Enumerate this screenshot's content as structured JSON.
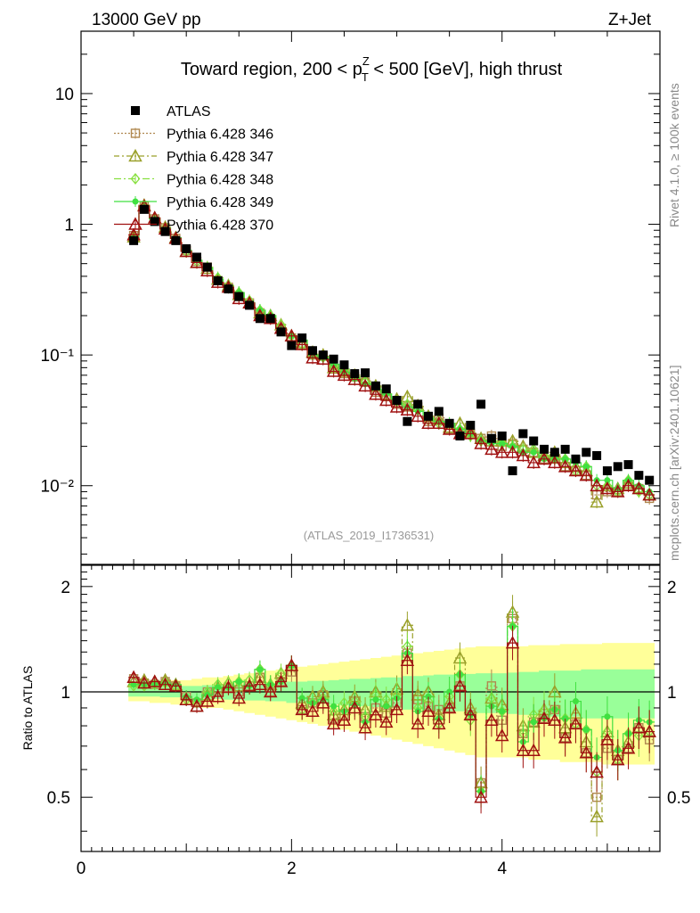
{
  "header": {
    "energy_label": "13000 GeV pp",
    "process_label": "Z+Jet",
    "side_label_top": "Rivet 4.1.0, ≥ 100k events",
    "side_label_bottom": "mcplots.cern.ch [arXiv:2401.10621]",
    "analysis_id": "(ATLAS_2019_I1736531)"
  },
  "chart_data": [
    {
      "type": "scatter",
      "title": "Toward region, 200 < p_T^Z < 500 [GeV], high thrust",
      "title_parts": {
        "before": "Toward region, 200 < p",
        "sup": "Z",
        "sub": "T",
        "after": " < 500 [GeV], high thrust"
      },
      "xlabel": "",
      "ylabel": "",
      "xlim": [
        0,
        5.5
      ],
      "ylim": [
        0.0025,
        30
      ],
      "yscale": "log",
      "y_tick_labels": [
        "10",
        "1",
        "10⁻¹",
        "10⁻²"
      ],
      "y_tick_values": [
        10,
        1,
        0.1,
        0.01
      ],
      "legend": [
        "ATLAS",
        "Pythia 6.428 346",
        "Pythia 6.428 347",
        "Pythia 6.428 348",
        "Pythia 6.428 349",
        "Pythia 6.428 370"
      ],
      "legend_position": "top-left",
      "x": [
        0.5,
        0.6,
        0.7,
        0.8,
        0.9,
        1.0,
        1.1,
        1.2,
        1.3,
        1.4,
        1.5,
        1.6,
        1.7,
        1.8,
        1.9,
        2.0,
        2.1,
        2.2,
        2.3,
        2.4,
        2.5,
        2.6,
        2.7,
        2.8,
        2.9,
        3.0,
        3.1,
        3.2,
        3.3,
        3.4,
        3.5,
        3.6,
        3.7,
        3.8,
        3.9,
        4.0,
        4.1,
        4.2,
        4.3,
        4.4,
        4.5,
        4.6,
        4.7,
        4.8,
        4.9,
        5.0,
        5.1,
        5.2,
        5.3,
        5.4
      ],
      "series": [
        {
          "name": "ATLAS",
          "color": "#000000",
          "marker": "square",
          "values": [
            0.75,
            1.3,
            1.05,
            0.88,
            0.75,
            0.65,
            0.56,
            0.47,
            0.37,
            0.32,
            0.28,
            0.24,
            0.19,
            0.19,
            0.15,
            0.118,
            0.135,
            0.108,
            0.1,
            0.093,
            0.084,
            0.072,
            0.073,
            0.058,
            0.055,
            0.045,
            0.031,
            0.042,
            0.034,
            0.037,
            0.03,
            0.024,
            0.029,
            0.042,
            0.023,
            0.024,
            0.013,
            0.025,
            0.022,
            0.019,
            0.018,
            0.019,
            0.016,
            0.018,
            0.017,
            0.013,
            0.014,
            0.0145,
            0.012,
            0.011
          ]
        },
        {
          "name": "Pythia 6.428 346",
          "color": "#b08850",
          "marker": "open-square",
          "values": [
            0.82,
            1.38,
            1.1,
            0.94,
            0.78,
            0.63,
            0.52,
            0.47,
            0.37,
            0.33,
            0.28,
            0.25,
            0.21,
            0.19,
            0.16,
            0.135,
            0.12,
            0.1,
            0.098,
            0.078,
            0.072,
            0.068,
            0.062,
            0.052,
            0.048,
            0.042,
            0.04,
            0.04,
            0.031,
            0.033,
            0.027,
            0.025,
            0.025,
            0.023,
            0.024,
            0.02,
            0.021,
            0.019,
            0.018,
            0.016,
            0.016,
            0.014,
            0.013,
            0.012,
            0.0085,
            0.009,
            0.009,
            0.01,
            0.0095,
            0.008
          ]
        },
        {
          "name": "Pythia 6.428 347",
          "color": "#9aa02a",
          "marker": "open-triangle",
          "values": [
            0.8,
            1.4,
            1.12,
            0.95,
            0.79,
            0.62,
            0.51,
            0.46,
            0.38,
            0.34,
            0.29,
            0.25,
            0.21,
            0.2,
            0.17,
            0.14,
            0.125,
            0.105,
            0.1,
            0.08,
            0.075,
            0.07,
            0.065,
            0.058,
            0.05,
            0.046,
            0.048,
            0.041,
            0.034,
            0.032,
            0.028,
            0.03,
            0.026,
            0.023,
            0.022,
            0.022,
            0.022,
            0.02,
            0.018,
            0.017,
            0.018,
            0.015,
            0.014,
            0.013,
            0.0075,
            0.01,
            0.0095,
            0.0105,
            0.0095,
            0.0085
          ]
        },
        {
          "name": "Pythia 6.428 348",
          "color": "#88e040",
          "marker": "open-diamond",
          "values": [
            0.78,
            1.35,
            1.1,
            0.93,
            0.78,
            0.62,
            0.52,
            0.47,
            0.39,
            0.34,
            0.3,
            0.26,
            0.22,
            0.2,
            0.17,
            0.14,
            0.12,
            0.1,
            0.096,
            0.082,
            0.078,
            0.068,
            0.062,
            0.057,
            0.052,
            0.044,
            0.042,
            0.038,
            0.032,
            0.03,
            0.029,
            0.027,
            0.024,
            0.022,
            0.022,
            0.021,
            0.02,
            0.019,
            0.019,
            0.017,
            0.016,
            0.016,
            0.013,
            0.014,
            0.01,
            0.01,
            0.009,
            0.011,
            0.009,
            0.0085
          ]
        },
        {
          "name": "Pythia 6.428 349",
          "color": "#40e040",
          "marker": "circle",
          "values": [
            0.79,
            1.36,
            1.1,
            0.93,
            0.79,
            0.63,
            0.53,
            0.46,
            0.38,
            0.33,
            0.3,
            0.25,
            0.22,
            0.2,
            0.16,
            0.14,
            0.13,
            0.1,
            0.095,
            0.085,
            0.074,
            0.066,
            0.06,
            0.055,
            0.05,
            0.043,
            0.04,
            0.037,
            0.033,
            0.031,
            0.03,
            0.027,
            0.025,
            0.022,
            0.021,
            0.021,
            0.02,
            0.018,
            0.018,
            0.016,
            0.016,
            0.016,
            0.015,
            0.014,
            0.011,
            0.011,
            0.0095,
            0.011,
            0.01,
            0.009
          ]
        },
        {
          "name": "Pythia 6.428 370",
          "color": "#a01010",
          "marker": "open-triangle",
          "values": [
            0.83,
            1.38,
            1.12,
            0.92,
            0.78,
            0.62,
            0.51,
            0.44,
            0.36,
            0.33,
            0.27,
            0.25,
            0.2,
            0.19,
            0.16,
            0.14,
            0.12,
            0.095,
            0.093,
            0.075,
            0.07,
            0.065,
            0.058,
            0.05,
            0.045,
            0.04,
            0.038,
            0.034,
            0.03,
            0.03,
            0.027,
            0.025,
            0.025,
            0.021,
            0.019,
            0.018,
            0.018,
            0.017,
            0.015,
            0.016,
            0.015,
            0.014,
            0.013,
            0.012,
            0.01,
            0.0095,
            0.009,
            0.01,
            0.0095,
            0.0085
          ]
        }
      ]
    },
    {
      "type": "line",
      "title": "",
      "xlabel": "",
      "ylabel": "Ratio to ATLAS",
      "xlim": [
        0,
        5.5
      ],
      "ylim": [
        0.35,
        2.3
      ],
      "yscale": "log",
      "x_tick_labels": [
        "0",
        "2",
        "4"
      ],
      "x_tick_values": [
        0,
        2,
        4
      ],
      "y_tick_labels": [
        "2",
        "1",
        "0.5"
      ],
      "y_tick_values": [
        2,
        1,
        0.5
      ],
      "reference_line": 1,
      "band_outer_color": "#ffff99",
      "band_inner_color": "#99ff99",
      "band_inner": [
        0.03,
        0.03,
        0.03,
        0.035,
        0.035,
        0.04,
        0.04,
        0.045,
        0.045,
        0.05,
        0.05,
        0.055,
        0.055,
        0.06,
        0.06,
        0.07,
        0.07,
        0.075,
        0.075,
        0.08,
        0.085,
        0.09,
        0.09,
        0.095,
        0.1,
        0.1,
        0.11,
        0.11,
        0.115,
        0.12,
        0.12,
        0.12,
        0.125,
        0.13,
        0.13,
        0.13,
        0.135,
        0.14,
        0.14,
        0.15,
        0.15,
        0.15,
        0.15,
        0.16,
        0.16,
        0.16,
        0.16,
        0.16,
        0.16,
        0.16
      ],
      "band_outer": [
        0.06,
        0.06,
        0.07,
        0.07,
        0.08,
        0.08,
        0.09,
        0.1,
        0.1,
        0.11,
        0.12,
        0.13,
        0.14,
        0.15,
        0.16,
        0.17,
        0.18,
        0.19,
        0.2,
        0.21,
        0.22,
        0.23,
        0.24,
        0.25,
        0.26,
        0.27,
        0.28,
        0.29,
        0.3,
        0.31,
        0.32,
        0.33,
        0.34,
        0.35,
        0.35,
        0.35,
        0.35,
        0.35,
        0.36,
        0.36,
        0.36,
        0.37,
        0.37,
        0.37,
        0.37,
        0.38,
        0.38,
        0.38,
        0.38,
        0.38
      ],
      "x": [
        0.5,
        0.6,
        0.7,
        0.8,
        0.9,
        1.0,
        1.1,
        1.2,
        1.3,
        1.4,
        1.5,
        1.6,
        1.7,
        1.8,
        1.9,
        2.0,
        2.1,
        2.2,
        2.3,
        2.4,
        2.5,
        2.6,
        2.7,
        2.8,
        2.9,
        3.0,
        3.1,
        3.2,
        3.3,
        3.4,
        3.5,
        3.6,
        3.7,
        3.8,
        3.9,
        4.0,
        4.1,
        4.2,
        4.3,
        4.4,
        4.5,
        4.6,
        4.7,
        4.8,
        4.9,
        5.0,
        5.1,
        5.2,
        5.3,
        5.4
      ],
      "series": [
        {
          "name": "Pythia 6.428 346",
          "color": "#b08850",
          "marker": "open-square",
          "values": [
            1.09,
            1.06,
            1.05,
            1.07,
            1.04,
            0.97,
            0.93,
            1.0,
            1.0,
            1.03,
            1.0,
            1.04,
            1.1,
            1.0,
            1.07,
            1.14,
            0.89,
            0.93,
            0.98,
            0.84,
            0.86,
            0.94,
            0.85,
            0.9,
            0.87,
            0.93,
            1.29,
            0.95,
            0.91,
            0.89,
            0.9,
            1.04,
            0.86,
            0.55,
            1.04,
            0.83,
            1.62,
            0.76,
            0.82,
            0.84,
            0.89,
            0.74,
            0.81,
            0.67,
            0.5,
            0.69,
            0.64,
            0.69,
            0.79,
            0.73
          ]
        },
        {
          "name": "Pythia 6.428 347",
          "color": "#9aa02a",
          "marker": "open-triangle",
          "values": [
            1.07,
            1.08,
            1.07,
            1.08,
            1.05,
            0.95,
            0.91,
            0.98,
            1.03,
            1.06,
            1.04,
            1.04,
            1.1,
            1.05,
            1.13,
            1.19,
            0.93,
            0.97,
            1.0,
            0.86,
            0.89,
            0.97,
            0.89,
            1.0,
            0.91,
            1.02,
            1.55,
            0.98,
            1.0,
            0.86,
            0.93,
            1.25,
            0.9,
            0.55,
            0.96,
            0.92,
            1.69,
            0.8,
            0.82,
            0.89,
            1.0,
            0.79,
            0.87,
            0.72,
            0.44,
            0.77,
            0.68,
            0.72,
            0.79,
            0.77
          ]
        },
        {
          "name": "Pythia 6.428 348",
          "color": "#88e040",
          "marker": "open-diamond",
          "values": [
            1.04,
            1.04,
            1.05,
            1.06,
            1.04,
            0.95,
            0.93,
            1.0,
            1.05,
            1.06,
            1.07,
            1.08,
            1.16,
            1.05,
            1.13,
            1.19,
            0.89,
            0.93,
            0.96,
            0.88,
            0.93,
            0.94,
            0.85,
            0.98,
            0.95,
            0.98,
            1.35,
            0.9,
            0.94,
            0.81,
            0.97,
            1.12,
            0.83,
            0.52,
            0.96,
            0.88,
            1.54,
            0.76,
            0.86,
            0.89,
            0.89,
            0.84,
            0.81,
            0.78,
            0.59,
            0.77,
            0.64,
            0.76,
            0.75,
            0.77
          ]
        },
        {
          "name": "Pythia 6.428 349",
          "color": "#40e040",
          "marker": "circle",
          "values": [
            1.05,
            1.05,
            1.05,
            1.06,
            1.05,
            0.97,
            0.95,
            0.98,
            1.03,
            1.03,
            1.07,
            1.04,
            1.16,
            1.05,
            1.07,
            1.19,
            0.96,
            0.93,
            0.95,
            0.91,
            0.88,
            0.92,
            0.82,
            0.95,
            0.91,
            0.96,
            1.29,
            0.88,
            0.97,
            0.84,
            1.0,
            1.12,
            0.86,
            0.52,
            0.91,
            0.88,
            1.54,
            0.72,
            0.82,
            0.84,
            0.89,
            0.84,
            0.94,
            0.78,
            0.65,
            0.85,
            0.68,
            0.76,
            0.83,
            0.82
          ]
        },
        {
          "name": "Pythia 6.428 370",
          "color": "#a01010",
          "marker": "open-triangle",
          "values": [
            1.1,
            1.06,
            1.07,
            1.05,
            1.04,
            0.95,
            0.91,
            0.94,
            0.97,
            1.03,
            0.96,
            1.04,
            1.05,
            1.0,
            1.07,
            1.19,
            0.89,
            0.88,
            0.93,
            0.81,
            0.83,
            0.9,
            0.79,
            0.86,
            0.82,
            0.89,
            1.23,
            0.81,
            0.88,
            0.81,
            0.9,
            1.04,
            0.86,
            0.5,
            0.83,
            0.75,
            1.38,
            0.68,
            0.68,
            0.84,
            0.83,
            0.74,
            0.81,
            0.67,
            0.59,
            0.73,
            0.64,
            0.69,
            0.79,
            0.77
          ]
        }
      ]
    }
  ]
}
